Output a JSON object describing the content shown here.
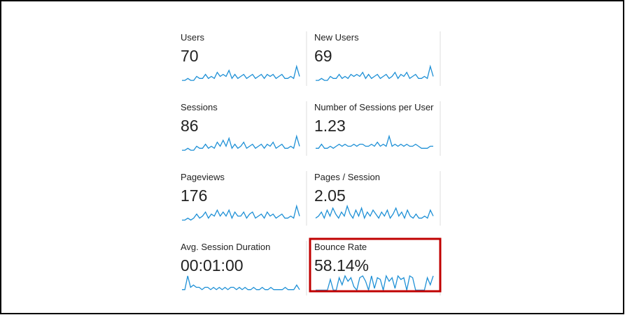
{
  "line_color": "#1e90d6",
  "metrics": [
    {
      "label": "Users",
      "value": "70",
      "sparkline": [
        1,
        1,
        2,
        1,
        1,
        3,
        2,
        2,
        4,
        2,
        3,
        2,
        5,
        3,
        4,
        3,
        6,
        2,
        4,
        2,
        3,
        4,
        2,
        3,
        4,
        2,
        3,
        4,
        2,
        4,
        3,
        4,
        2,
        3,
        4,
        2,
        2,
        3,
        2,
        8,
        3
      ]
    },
    {
      "label": "New Users",
      "value": "69",
      "sparkline": [
        1,
        1,
        2,
        1,
        1,
        3,
        2,
        2,
        4,
        2,
        3,
        2,
        4,
        3,
        4,
        3,
        5,
        2,
        4,
        2,
        3,
        4,
        2,
        3,
        4,
        2,
        3,
        5,
        2,
        4,
        3,
        5,
        2,
        3,
        4,
        2,
        2,
        3,
        2,
        8,
        3
      ]
    },
    {
      "label": "Sessions",
      "value": "86",
      "sparkline": [
        1,
        1,
        2,
        1,
        1,
        3,
        2,
        2,
        4,
        2,
        3,
        2,
        5,
        3,
        6,
        3,
        7,
        2,
        4,
        2,
        3,
        5,
        2,
        3,
        4,
        2,
        3,
        4,
        2,
        4,
        3,
        5,
        2,
        3,
        4,
        2,
        2,
        3,
        2,
        8,
        3
      ]
    },
    {
      "label": "Number of Sessions per User",
      "value": "1.23",
      "sparkline": [
        2,
        2,
        4,
        2,
        2,
        3,
        2,
        3,
        4,
        3,
        4,
        3,
        3,
        4,
        3,
        4,
        4,
        3,
        3,
        4,
        3,
        5,
        3,
        4,
        3,
        8,
        3,
        4,
        3,
        4,
        3,
        4,
        3,
        3,
        4,
        3,
        2,
        2,
        2,
        3,
        3
      ]
    },
    {
      "label": "Pageviews",
      "value": "176",
      "sparkline": [
        1,
        1,
        2,
        1,
        2,
        4,
        2,
        3,
        5,
        2,
        4,
        3,
        6,
        3,
        5,
        3,
        6,
        2,
        5,
        3,
        3,
        5,
        2,
        4,
        5,
        2,
        3,
        4,
        2,
        5,
        3,
        4,
        2,
        3,
        4,
        2,
        2,
        3,
        2,
        8,
        3
      ]
    },
    {
      "label": "Pages / Session",
      "value": "2.05",
      "sparkline": [
        2,
        3,
        5,
        2,
        6,
        3,
        7,
        4,
        2,
        5,
        3,
        8,
        4,
        2,
        6,
        3,
        7,
        2,
        5,
        3,
        6,
        4,
        2,
        5,
        3,
        6,
        2,
        4,
        7,
        3,
        5,
        2,
        6,
        3,
        2,
        4,
        2,
        2,
        3,
        2,
        6,
        3
      ]
    },
    {
      "label": "Avg. Session Duration",
      "value": "00:01:00",
      "sparkline": [
        1,
        1,
        7,
        2,
        3,
        2,
        2,
        1,
        2,
        2,
        1,
        2,
        1,
        2,
        1,
        2,
        1,
        2,
        2,
        1,
        2,
        1,
        2,
        1,
        1,
        2,
        1,
        1,
        2,
        1,
        1,
        2,
        1,
        1,
        1,
        1,
        2,
        1,
        1,
        1,
        3,
        1
      ]
    },
    {
      "label": "Bounce Rate",
      "value": "58.14%",
      "highlighted": true,
      "sparkline": [
        1,
        1,
        1,
        1,
        1,
        7,
        1,
        1,
        8,
        4,
        9,
        6,
        8,
        3,
        1,
        8,
        9,
        6,
        1,
        9,
        2,
        8,
        7,
        1,
        9,
        6,
        8,
        2,
        9,
        7,
        8,
        1,
        9,
        8,
        1,
        1,
        1,
        1,
        8,
        4,
        9
      ]
    }
  ]
}
